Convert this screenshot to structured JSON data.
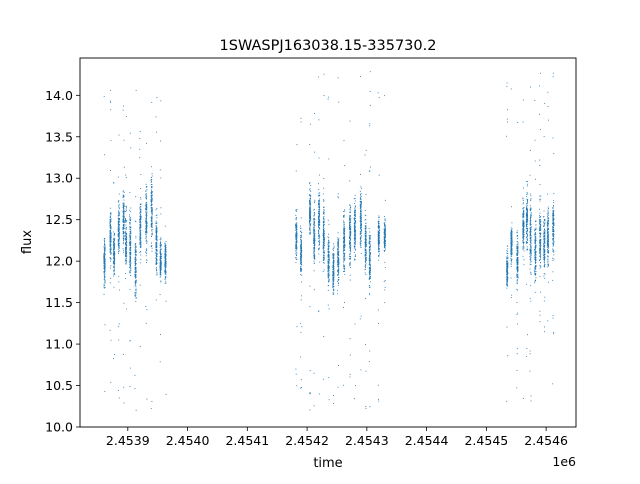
{
  "chart_data": {
    "type": "scatter",
    "title": "1SWASPJ163038.15-335730.2",
    "xlabel": "time",
    "ylabel": "flux",
    "x_offset_label": "1e6",
    "x_scale": 1000000,
    "xlim": [
      2.45382,
      2.45465
    ],
    "ylim": [
      10.0,
      14.45
    ],
    "xticks": [
      2.4539,
      2.454,
      2.4541,
      2.4542,
      2.4543,
      2.4544,
      2.4545,
      2.4546
    ],
    "xtick_labels": [
      "2.4539",
      "2.4540",
      "2.4541",
      "2.4542",
      "2.4543",
      "2.4544",
      "2.4545",
      "2.4546"
    ],
    "yticks": [
      10.0,
      10.5,
      11.0,
      11.5,
      12.0,
      12.5,
      13.0,
      13.5,
      14.0
    ],
    "ytick_labels": [
      "10.0",
      "10.5",
      "11.0",
      "11.5",
      "12.0",
      "12.5",
      "13.0",
      "13.5",
      "14.0"
    ],
    "grid": false,
    "legend": "none",
    "marker_color": "#1f77b4",
    "seasons": [
      {
        "x_range": [
          2.45386,
          2.45397
        ],
        "flux_median": 12.15,
        "flux_typical_range": [
          11.5,
          13.0
        ],
        "flux_extremes": [
          10.2,
          14.1
        ],
        "nightly_clusters": [
          {
            "x": 2.453861,
            "center": 12.0,
            "spread": 0.35
          },
          {
            "x": 2.453871,
            "center": 12.3,
            "spread": 0.35
          },
          {
            "x": 2.453877,
            "center": 12.1,
            "spread": 0.3
          },
          {
            "x": 2.453885,
            "center": 12.4,
            "spread": 0.35
          },
          {
            "x": 2.453893,
            "center": 12.5,
            "spread": 0.4
          },
          {
            "x": 2.453897,
            "center": 12.2,
            "spread": 0.4
          },
          {
            "x": 2.453904,
            "center": 12.2,
            "spread": 0.45
          },
          {
            "x": 2.453913,
            "center": 11.9,
            "spread": 0.45
          },
          {
            "x": 2.453921,
            "center": 12.4,
            "spread": 0.4
          },
          {
            "x": 2.453931,
            "center": 12.5,
            "spread": 0.45
          },
          {
            "x": 2.45394,
            "center": 12.6,
            "spread": 0.45
          },
          {
            "x": 2.453948,
            "center": 12.2,
            "spread": 0.4
          },
          {
            "x": 2.453955,
            "center": 12.0,
            "spread": 0.3
          },
          {
            "x": 2.453963,
            "center": 12.0,
            "spread": 0.25
          }
        ]
      },
      {
        "x_range": [
          2.45418,
          2.45433
        ],
        "flux_median": 12.2,
        "flux_typical_range": [
          11.6,
          13.0
        ],
        "flux_extremes": [
          10.2,
          14.3
        ],
        "nightly_clusters": [
          {
            "x": 2.454182,
            "center": 12.3,
            "spread": 0.3
          },
          {
            "x": 2.45419,
            "center": 12.1,
            "spread": 0.3
          },
          {
            "x": 2.454205,
            "center": 12.6,
            "spread": 0.3
          },
          {
            "x": 2.454212,
            "center": 12.3,
            "spread": 0.4
          },
          {
            "x": 2.45422,
            "center": 12.5,
            "spread": 0.45
          },
          {
            "x": 2.454228,
            "center": 12.3,
            "spread": 0.45
          },
          {
            "x": 2.454236,
            "center": 12.0,
            "spread": 0.35
          },
          {
            "x": 2.454244,
            "center": 11.9,
            "spread": 0.3
          },
          {
            "x": 2.454252,
            "center": 12.0,
            "spread": 0.35
          },
          {
            "x": 2.454262,
            "center": 12.2,
            "spread": 0.4
          },
          {
            "x": 2.454272,
            "center": 12.3,
            "spread": 0.4
          },
          {
            "x": 2.45428,
            "center": 12.4,
            "spread": 0.4
          },
          {
            "x": 2.45429,
            "center": 12.5,
            "spread": 0.4
          },
          {
            "x": 2.454298,
            "center": 12.2,
            "spread": 0.4
          },
          {
            "x": 2.454305,
            "center": 12.0,
            "spread": 0.35
          },
          {
            "x": 2.45432,
            "center": 12.3,
            "spread": 0.25
          },
          {
            "x": 2.45433,
            "center": 12.3,
            "spread": 0.2
          }
        ]
      },
      {
        "x_range": [
          2.45453,
          2.45461
        ],
        "flux_median": 12.2,
        "flux_typical_range": [
          11.6,
          12.9
        ],
        "flux_extremes": [
          10.3,
          14.3
        ],
        "nightly_clusters": [
          {
            "x": 2.454535,
            "center": 11.9,
            "spread": 0.25
          },
          {
            "x": 2.454542,
            "center": 12.2,
            "spread": 0.25
          },
          {
            "x": 2.454552,
            "center": 12.0,
            "spread": 0.3
          },
          {
            "x": 2.454562,
            "center": 12.4,
            "spread": 0.35
          },
          {
            "x": 2.454568,
            "center": 12.5,
            "spread": 0.35
          },
          {
            "x": 2.454574,
            "center": 12.3,
            "spread": 0.45
          },
          {
            "x": 2.454582,
            "center": 12.1,
            "spread": 0.45
          },
          {
            "x": 2.45459,
            "center": 12.3,
            "spread": 0.4
          },
          {
            "x": 2.454597,
            "center": 12.2,
            "spread": 0.4
          },
          {
            "x": 2.454603,
            "center": 12.3,
            "spread": 0.4
          },
          {
            "x": 2.454612,
            "center": 12.4,
            "spread": 0.35
          }
        ]
      }
    ]
  }
}
